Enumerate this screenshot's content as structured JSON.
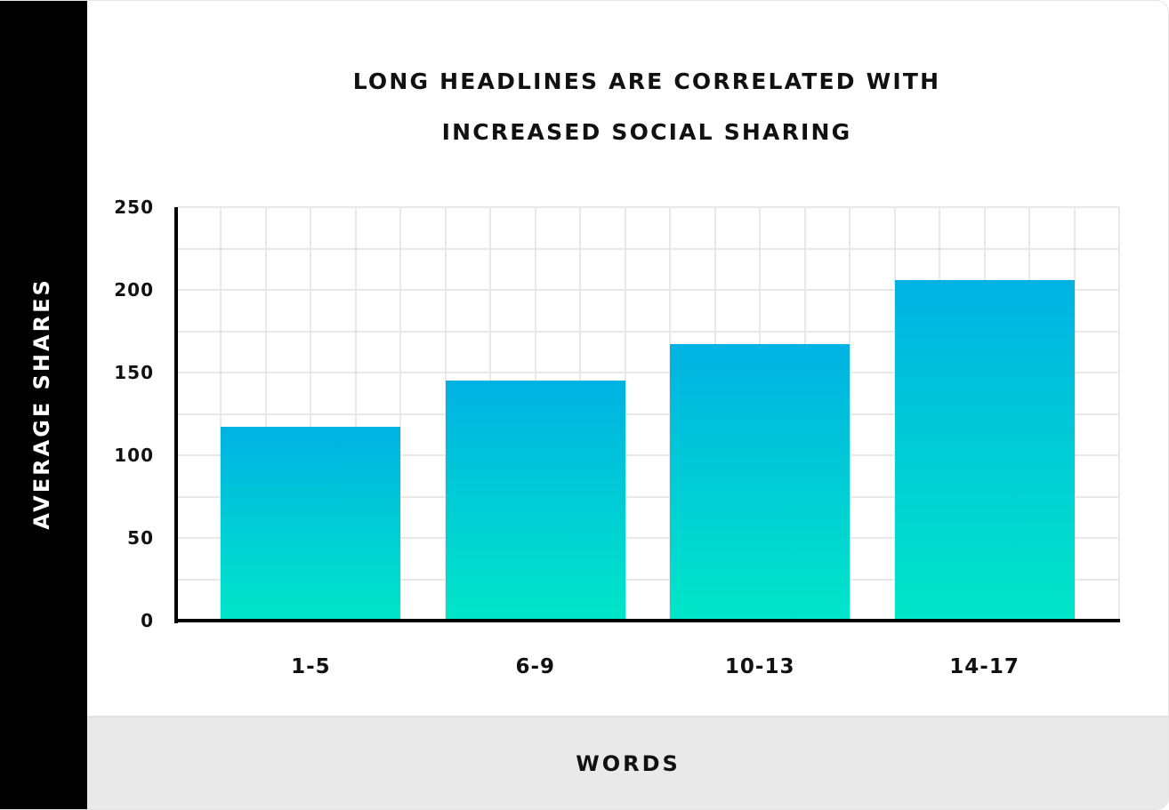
{
  "chart_data": {
    "type": "bar",
    "title": "LONG HEADLINES ARE CORRELATED WITH INCREASED SOCIAL SHARING",
    "title_lines": [
      "LONG HEADLINES ARE CORRELATED WITH",
      "INCREASED SOCIAL SHARING"
    ],
    "xlabel": "WORDS",
    "ylabel": "AVERAGE SHARES",
    "categories": [
      "1-5",
      "6-9",
      "10-13",
      "14-17"
    ],
    "values": [
      117,
      145,
      167,
      206
    ],
    "ylim": [
      0,
      250
    ],
    "yticks": [
      "250",
      "200",
      "150",
      "100",
      "50",
      "0"
    ],
    "grid": true,
    "legend": null,
    "colors": {
      "bar_top": "#00b2e3",
      "bar_bottom": "#00e6c8",
      "axis": "#000000",
      "grid": "#e8e8e8"
    }
  }
}
